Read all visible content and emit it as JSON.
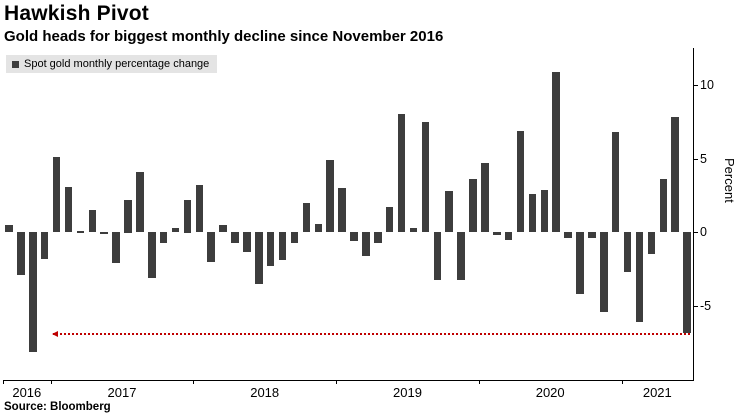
{
  "header": {
    "title": "Hawkish Pivot",
    "subtitle": "Gold heads for biggest monthly decline since November 2016"
  },
  "legend": {
    "label": "Spot gold monthly percentage change",
    "swatch_color": "#3d3d3d"
  },
  "source": "Source: Bloomberg",
  "chart_data": {
    "type": "bar",
    "title": "Spot gold monthly percentage change",
    "ylabel": "Percent",
    "ylim": [
      -10,
      12.5
    ],
    "yticks": [
      10,
      5,
      0,
      -5
    ],
    "bar_color": "#3d3d3d",
    "grid": "off",
    "legend_position": "top-left",
    "x_year_labels": [
      "2016",
      "2017",
      "2018",
      "2019",
      "2020",
      "2021"
    ],
    "months": [
      {
        "label": "Sep 2016",
        "value": 0.5
      },
      {
        "label": "Oct 2016",
        "value": -2.9
      },
      {
        "label": "Nov 2016",
        "value": -8.1
      },
      {
        "label": "Dec 2016",
        "value": -1.8
      },
      {
        "label": "Jan 2017",
        "value": 5.1
      },
      {
        "label": "Feb 2017",
        "value": 3.1
      },
      {
        "label": "Mar 2017",
        "value": 0.1
      },
      {
        "label": "Apr 2017",
        "value": 1.5
      },
      {
        "label": "May 2017",
        "value": -0.1
      },
      {
        "label": "Jun 2017",
        "value": -2.1
      },
      {
        "label": "Jul 2017",
        "value": 2.2
      },
      {
        "label": "Aug 2017",
        "value": 4.1
      },
      {
        "label": "Sep 2017",
        "value": -3.1
      },
      {
        "label": "Oct 2017",
        "value": -0.7
      },
      {
        "label": "Nov 2017",
        "value": 0.3
      },
      {
        "label": "Dec 2017",
        "value": 2.2
      },
      {
        "label": "Jan 2018",
        "value": 3.2
      },
      {
        "label": "Feb 2018",
        "value": -2.0
      },
      {
        "label": "Mar 2018",
        "value": 0.5
      },
      {
        "label": "Apr 2018",
        "value": -0.7
      },
      {
        "label": "May 2018",
        "value": -1.3
      },
      {
        "label": "Jun 2018",
        "value": -3.5
      },
      {
        "label": "Jul 2018",
        "value": -2.3
      },
      {
        "label": "Aug 2018",
        "value": -1.9
      },
      {
        "label": "Sep 2018",
        "value": -0.7
      },
      {
        "label": "Oct 2018",
        "value": 2.0
      },
      {
        "label": "Nov 2018",
        "value": 0.6
      },
      {
        "label": "Dec 2018",
        "value": 4.9
      },
      {
        "label": "Jan 2019",
        "value": 3.0
      },
      {
        "label": "Feb 2019",
        "value": -0.6
      },
      {
        "label": "Mar 2019",
        "value": -1.6
      },
      {
        "label": "Apr 2019",
        "value": -0.7
      },
      {
        "label": "May 2019",
        "value": 1.7
      },
      {
        "label": "Jun 2019",
        "value": 8.0
      },
      {
        "label": "Jul 2019",
        "value": 0.3
      },
      {
        "label": "Aug 2019",
        "value": 7.5
      },
      {
        "label": "Sep 2019",
        "value": -3.2
      },
      {
        "label": "Oct 2019",
        "value": 2.8
      },
      {
        "label": "Nov 2019",
        "value": -3.2
      },
      {
        "label": "Dec 2019",
        "value": 3.6
      },
      {
        "label": "Jan 2020",
        "value": 4.7
      },
      {
        "label": "Feb 2020",
        "value": -0.2
      },
      {
        "label": "Mar 2020",
        "value": -0.5
      },
      {
        "label": "Apr 2020",
        "value": 6.9
      },
      {
        "label": "May 2020",
        "value": 2.6
      },
      {
        "label": "Jun 2020",
        "value": 2.9
      },
      {
        "label": "Jul 2020",
        "value": 10.9
      },
      {
        "label": "Aug 2020",
        "value": -0.4
      },
      {
        "label": "Sep 2020",
        "value": -4.2
      },
      {
        "label": "Oct 2020",
        "value": -0.4
      },
      {
        "label": "Nov 2020",
        "value": -5.4
      },
      {
        "label": "Dec 2020",
        "value": 6.8
      },
      {
        "label": "Jan 2021",
        "value": -2.7
      },
      {
        "label": "Feb 2021",
        "value": -6.1
      },
      {
        "label": "Mar 2021",
        "value": -1.5
      },
      {
        "label": "Apr 2021",
        "value": 3.6
      },
      {
        "label": "May 2021",
        "value": 7.8
      },
      {
        "label": "Jun 2021",
        "value": -6.8
      }
    ],
    "annotation": {
      "type": "arrow-line",
      "value": -6.8,
      "start_index": 4,
      "end_index": 57,
      "color": "#bf0000",
      "style": "dotted",
      "arrowhead": "left"
    }
  }
}
